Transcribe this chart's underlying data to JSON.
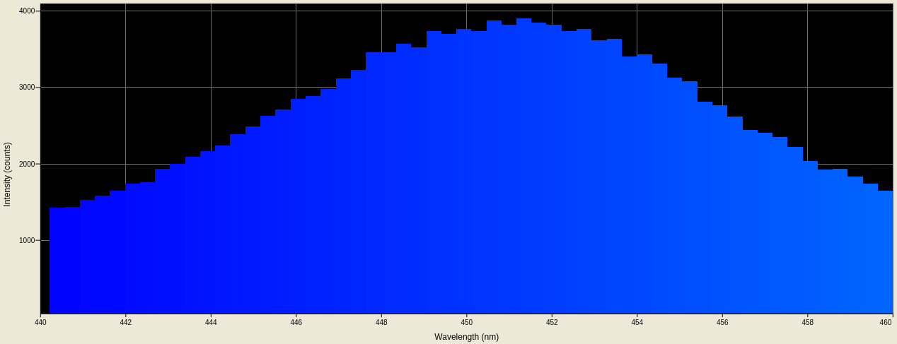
{
  "chart_data": {
    "type": "histogram",
    "xlabel": "Wavelength (nm)",
    "ylabel": "Intensity (counts)",
    "bins": [
      440.21,
      440.56,
      440.92,
      441.27,
      441.62,
      441.98,
      442.33,
      442.68,
      443.04,
      443.39,
      443.74,
      444.1,
      444.45,
      444.8,
      445.16,
      445.51,
      445.87,
      446.22,
      446.57,
      446.93,
      447.28,
      447.63,
      447.99,
      448.34,
      448.69,
      449.05,
      449.4,
      449.75,
      450.11,
      450.46,
      450.81,
      451.17,
      451.52,
      451.87,
      452.23,
      452.58,
      452.93,
      453.29,
      453.64,
      453.99,
      454.35,
      454.7,
      455.05,
      455.41,
      455.76,
      456.11,
      456.47,
      456.82,
      457.17,
      457.53,
      457.88,
      458.23,
      458.59,
      458.94,
      459.29,
      459.65,
      460.0
    ],
    "values": [
      1430,
      1440,
      1530,
      1580,
      1650,
      1740,
      1760,
      1940,
      2000,
      2090,
      2170,
      2240,
      2390,
      2490,
      2630,
      2710,
      2850,
      2890,
      2980,
      3120,
      3230,
      3460,
      3460,
      3570,
      3530,
      3740,
      3700,
      3770,
      3740,
      3880,
      3820,
      3910,
      3850,
      3820,
      3740,
      3770,
      3620,
      3640,
      3410,
      3430,
      3310,
      3130,
      3080,
      2810,
      2770,
      2620,
      2440,
      2410,
      2350,
      2220,
      2040,
      1930,
      1940,
      1830,
      1740,
      1650
    ],
    "colors": [
      "#0002ff",
      "#0004ff",
      "#0006ff",
      "#0007ff",
      "#0009ff",
      "#000bff",
      "#000dff",
      "#000fff",
      "#0010ff",
      "#0012ff",
      "#0014ff",
      "#0016ff",
      "#0018ff",
      "#0019ff",
      "#001bff",
      "#001dff",
      "#001fff",
      "#0021ff",
      "#0022ff",
      "#0024ff",
      "#0026ff",
      "#0028ff",
      "#002aff",
      "#002bff",
      "#002dff",
      "#002fff",
      "#0031ff",
      "#0033ff",
      "#0034ff",
      "#0036ff",
      "#0038ff",
      "#003aff",
      "#003cff",
      "#003dff",
      "#003fff",
      "#0041ff",
      "#0043ff",
      "#0045ff",
      "#0046ff",
      "#0048ff",
      "#004aff",
      "#004cff",
      "#004eff",
      "#004fff",
      "#0051ff",
      "#0053ff",
      "#0055ff",
      "#0057ff",
      "#0058ff",
      "#005aff",
      "#005cff",
      "#005eff",
      "#0060ff",
      "#0061ff",
      "#0063ff",
      "#0065ff"
    ],
    "xlim": [
      440,
      460
    ],
    "xticks": [
      440,
      442,
      444,
      446,
      448,
      450,
      452,
      454,
      456,
      458,
      460
    ],
    "ylim": [
      40,
      4100
    ],
    "yticks": [
      1000,
      2000,
      3000,
      4000
    ],
    "grid": true
  }
}
